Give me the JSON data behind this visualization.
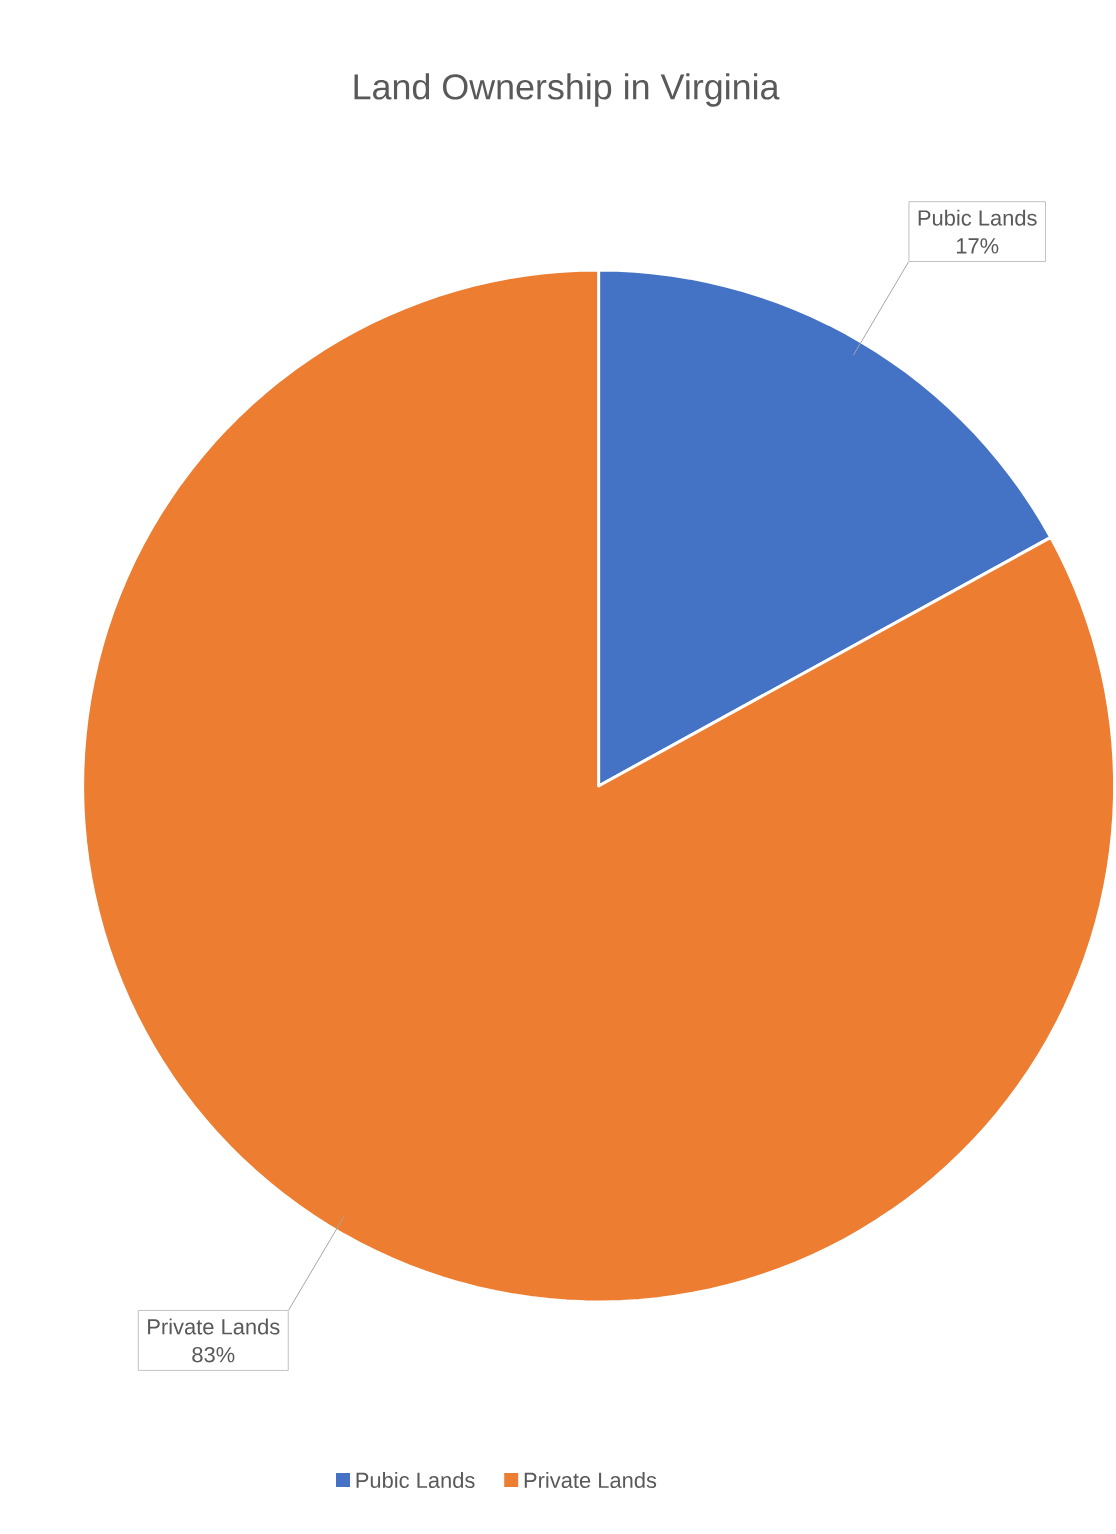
{
  "chart_data": {
    "type": "pie",
    "title": "Land Ownership in Virginia",
    "categories": [
      "Pubic Lands",
      "Private Lands"
    ],
    "values": [
      17,
      83
    ],
    "value_labels": [
      "17%",
      "83%"
    ],
    "colors": [
      "#4472c4",
      "#ed7d31"
    ],
    "legend": "bottom"
  }
}
